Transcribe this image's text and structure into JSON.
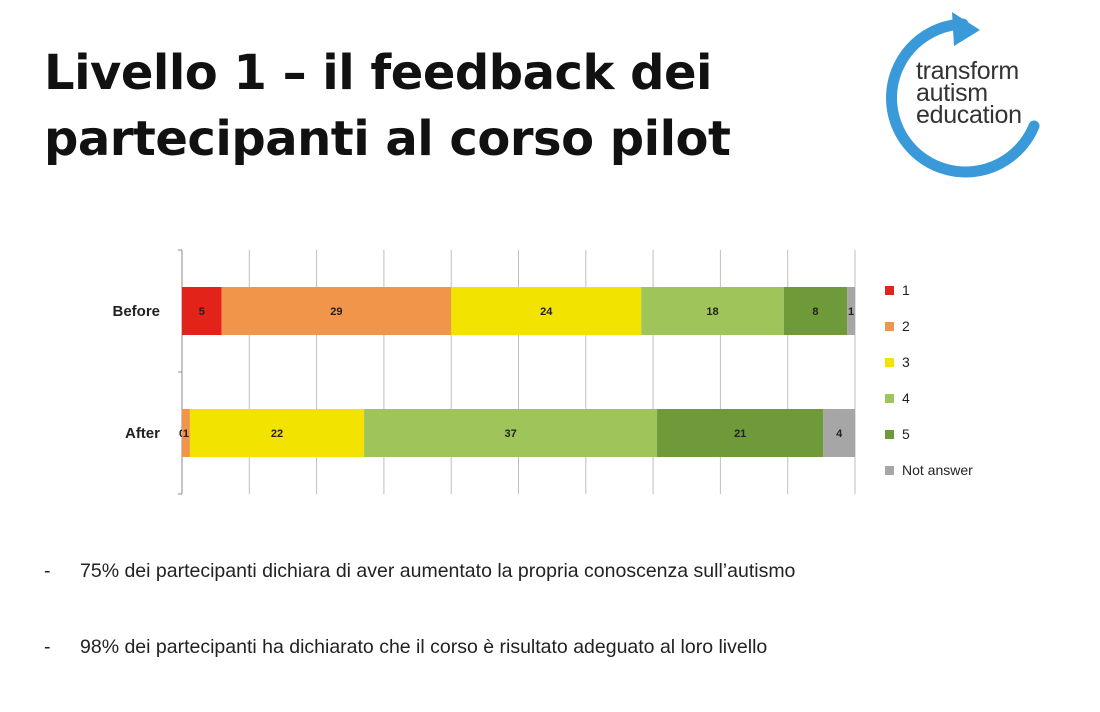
{
  "slide": {
    "title_line1": "Livello 1 – il feedback dei",
    "title_line2": "partecipanti al corso pilot"
  },
  "logo": {
    "line1": "transform",
    "line2": "autism",
    "line3": "education",
    "color": "#3a9ad9"
  },
  "chart_data": {
    "type": "bar",
    "orientation": "horizontal",
    "stacked": true,
    "categories": [
      "Before",
      "After"
    ],
    "series": [
      {
        "name": "1",
        "values": [
          5,
          0
        ],
        "color": "#e2231a"
      },
      {
        "name": "2",
        "values": [
          29,
          1
        ],
        "color": "#f0954a"
      },
      {
        "name": "3",
        "values": [
          24,
          22
        ],
        "color": "#f2e400"
      },
      {
        "name": "4",
        "values": [
          18,
          37
        ],
        "color": "#9fc45a"
      },
      {
        "name": "5",
        "values": [
          8,
          21
        ],
        "color": "#6e9a3a"
      },
      {
        "name": "Not answer",
        "values": [
          1,
          4
        ],
        "color": "#a6a6a6"
      }
    ],
    "data_labels": [
      [
        "5",
        "29",
        "24",
        "18",
        "8",
        "1"
      ],
      [
        "0",
        "1",
        "22",
        "37",
        "21",
        "4"
      ]
    ],
    "xlim": [
      0,
      85
    ],
    "grid": true,
    "legend_position": "right"
  },
  "bullets": {
    "dash": "-",
    "items": [
      "75% dei partecipanti dichiara di aver aumentato la propria conoscenza sull’autismo",
      "98% dei partecipanti ha dichiarato che il corso è risultato adeguato al loro livello"
    ]
  }
}
